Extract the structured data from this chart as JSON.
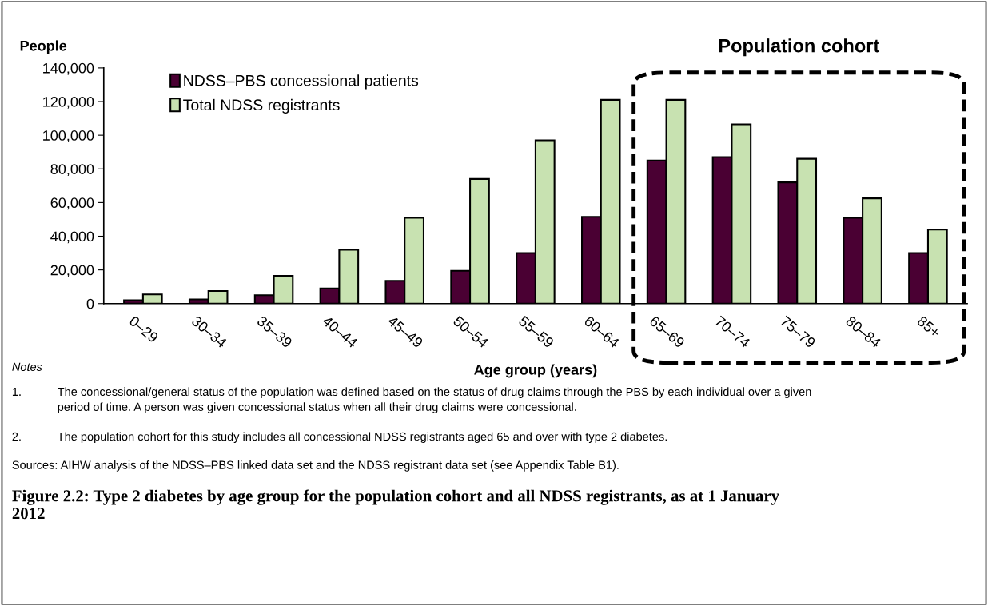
{
  "chart_data": {
    "type": "bar",
    "title": "Figure 2.2: Type 2 diabetes by age group for the population cohort and all NDSS registrants, as at 1 January 2012",
    "ylabel": "People",
    "xlabel": "Age group (years)",
    "categories": [
      "0–29",
      "30–34",
      "35–39",
      "40–44",
      "45–49",
      "50–54",
      "55–59",
      "60–64",
      "65–69",
      "70–74",
      "75–79",
      "80–84",
      "85+"
    ],
    "series": [
      {
        "name": "NDSS–PBS concessional patients",
        "color": "#4a0033",
        "values": [
          2000,
          2500,
          5000,
          9000,
          13500,
          19500,
          30000,
          51500,
          85000,
          87000,
          72000,
          51000,
          30000
        ]
      },
      {
        "name": "Total NDSS registrants",
        "color": "#c8e2b1",
        "values": [
          5500,
          7500,
          16500,
          32000,
          51000,
          74000,
          97000,
          121000,
          121000,
          106500,
          86000,
          62500,
          44000
        ]
      }
    ],
    "ylim": [
      0,
      140000
    ],
    "yticks": [
      0,
      {
        "value": 20000,
        "label": "20,000"
      },
      {
        "value": 40000,
        "label": "40,000"
      },
      {
        "value": 60000,
        "label": "60,000"
      },
      {
        "value": 80000,
        "label": "80,000"
      },
      {
        "value": 100000,
        "label": "100,000"
      },
      {
        "value": 120000,
        "label": "120,000"
      },
      {
        "value": 140000,
        "label": "140,000"
      }
    ],
    "annotations": [
      "Population cohort",
      "Notes",
      "1.",
      "The concessional/general status of the population was defined based on the status of drug claims through the PBS by each individual over a given period of time. A person was given concessional status when all their drug claims were concessional.",
      "2.",
      "The population cohort for this study includes all concessional NDSS registrants aged 65 and over with type 2 diabetes.",
      "Sources: AIHW analysis of the NDSS–PBS linked data set and the NDSS registrant data set (see Appendix Table B1)."
    ],
    "legend": "top left",
    "grid": false
  }
}
